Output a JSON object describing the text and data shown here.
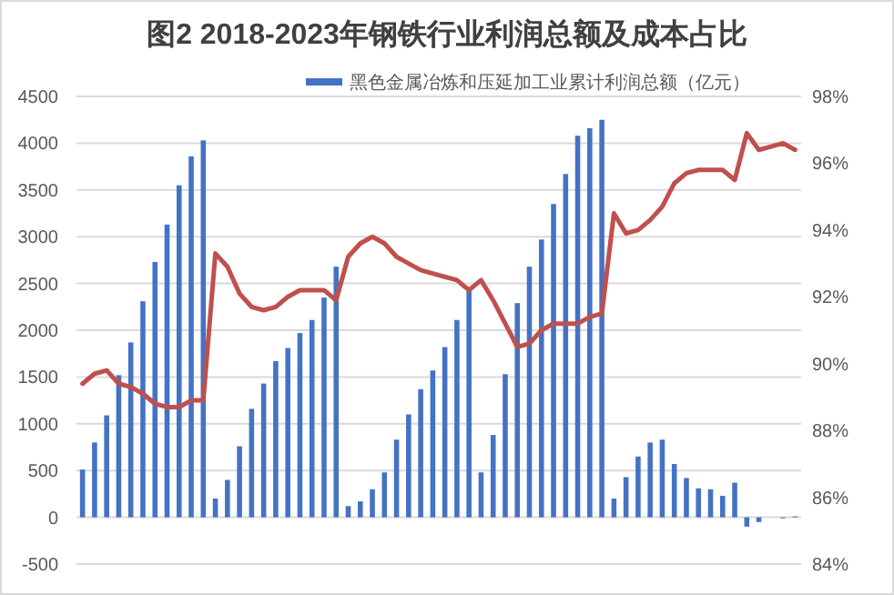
{
  "chart_data": {
    "type": "bar",
    "title": "图2 2018-2023年钢铁行业利润总额及成本占比",
    "categories": [
      null,
      null,
      null,
      null,
      null,
      null,
      null,
      null,
      null,
      null,
      null,
      null,
      null,
      null,
      null,
      null,
      null,
      null,
      null,
      null,
      null,
      null,
      null,
      null,
      null,
      null,
      null,
      null,
      null,
      null,
      null,
      null,
      null,
      null,
      null,
      null,
      null,
      null,
      null,
      null,
      null,
      null,
      null,
      null,
      null,
      null,
      null,
      null,
      null,
      null,
      null,
      null,
      null,
      null,
      null,
      null,
      null,
      null,
      null,
      null
    ],
    "series": [
      {
        "name": "黑色金属冶炼和压延加工业累计利润总额（亿元）",
        "color": "#4472c4",
        "values": [
          510,
          800,
          1090,
          1520,
          1870,
          2310,
          2730,
          3130,
          3550,
          3860,
          4030,
          200,
          400,
          760,
          1160,
          1430,
          1670,
          1810,
          1970,
          2110,
          2350,
          2680,
          120,
          170,
          300,
          480,
          830,
          1100,
          1370,
          1570,
          1820,
          2110,
          2420,
          480,
          880,
          1530,
          2290,
          2680,
          2970,
          3350,
          3670,
          4080,
          4160,
          4250,
          200,
          430,
          650,
          800,
          830,
          570,
          420,
          310,
          300,
          230,
          370,
          -100,
          -50,
          0,
          -10,
          10
        ]
      },
      {
        "type": "line",
        "axis": "y2",
        "color": "#c0504d",
        "values": [
          89.4,
          89.7,
          89.8,
          89.4,
          89.3,
          89.1,
          88.8,
          88.7,
          88.7,
          88.9,
          88.9,
          93.3,
          92.9,
          92.1,
          91.7,
          91.6,
          91.7,
          92.0,
          92.2,
          92.2,
          92.2,
          91.9,
          93.2,
          93.6,
          93.8,
          93.6,
          93.2,
          93.0,
          92.8,
          92.7,
          92.6,
          92.5,
          92.2,
          92.5,
          91.9,
          91.2,
          90.5,
          90.6,
          91.0,
          91.2,
          91.2,
          91.2,
          91.4,
          91.5,
          94.5,
          93.9,
          94.0,
          94.3,
          94.7,
          95.4,
          95.7,
          95.8,
          95.8,
          95.8,
          95.5,
          96.9,
          96.4,
          96.5,
          96.6,
          96.4
        ]
      }
    ],
    "ylim": [
      -500,
      4500
    ],
    "yticks": [
      -500,
      0,
      500,
      1000,
      1500,
      2000,
      2500,
      3000,
      3500,
      4000,
      4500
    ],
    "y2lim": [
      84,
      98
    ],
    "y2ticks": [
      {
        "value": 84,
        "label": "84%"
      },
      {
        "value": 86,
        "label": "86%"
      },
      {
        "value": 88,
        "label": "88%"
      },
      {
        "value": 90,
        "label": "90%"
      },
      {
        "value": 92,
        "label": "92%"
      },
      {
        "value": 94,
        "label": "94%"
      },
      {
        "value": 96,
        "label": "96%"
      },
      {
        "value": 98,
        "label": "98%"
      }
    ],
    "grid": "y",
    "legend": "top"
  }
}
